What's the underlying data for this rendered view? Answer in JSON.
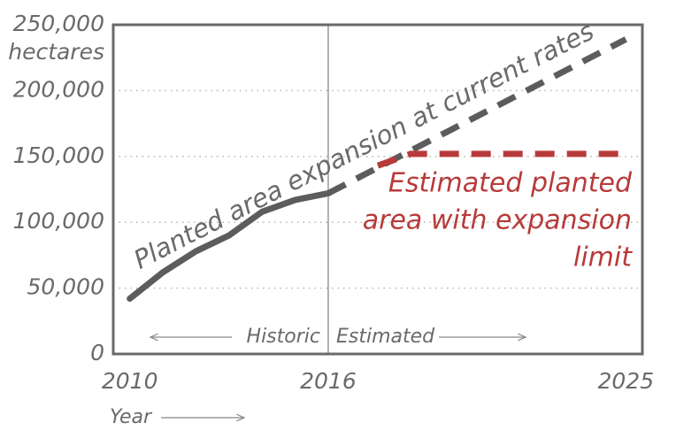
{
  "chart_data": {
    "type": "line",
    "ylabel": "hectares",
    "xlabel": "Year",
    "xlim": [
      2009.5,
      2025.5
    ],
    "ylim": [
      0,
      250000
    ],
    "xticks": [
      2010,
      2016,
      2025
    ],
    "yticks": [
      0,
      {
        "value": 50000,
        "label": "50,000"
      },
      {
        "value": 100000,
        "label": "100,000"
      },
      {
        "value": 150000,
        "label": "150,000"
      },
      {
        "value": 200000,
        "label": "200,000"
      },
      {
        "value": 250000,
        "label": "250,000"
      }
    ],
    "grid": true,
    "divider": 2016,
    "period_labels": [
      "Historic",
      "Estimated"
    ],
    "series": [
      {
        "color": "#5c5c5c",
        "dashed": false,
        "x": [
          2010,
          2011,
          2012,
          2013,
          2014,
          2015,
          2016
        ],
        "values": [
          42000,
          62000,
          78000,
          90000,
          108000,
          117000,
          122000
        ]
      },
      {
        "color": "#5c5c5c",
        "dashed": true,
        "x": [
          2016,
          2025
        ],
        "values": [
          122000,
          239000
        ]
      },
      {
        "color": "#b83a3a",
        "dashed": true,
        "x": [
          2017.5,
          2018.5,
          2025
        ],
        "values": [
          143000,
          152000,
          152000
        ]
      }
    ],
    "annotations": [
      {
        "text": "Planted area expansion at current rates",
        "color": "#6a6a6a"
      },
      {
        "lines": [
          "Estimated planted",
          "area with expansion",
          "limit"
        ],
        "color": "#b83a3a"
      }
    ]
  }
}
